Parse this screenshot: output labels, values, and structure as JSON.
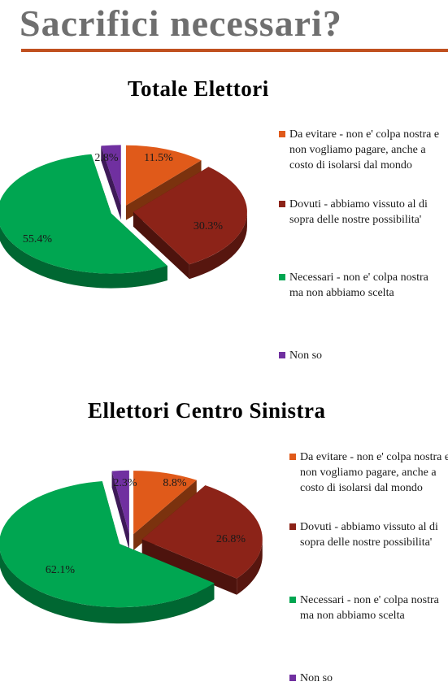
{
  "page": {
    "title": "Sacrifici necessari?"
  },
  "colors": {
    "evitare": "#e05a1a",
    "dovuti": "#8c2318",
    "necessari": "#00a651",
    "nonso": "#7030a0",
    "title_rule": "#c0501f"
  },
  "chart_data": [
    {
      "type": "pie",
      "title": "Totale Elettori",
      "legend_position": "right",
      "categories": [
        "Da evitare - non e' colpa nostra e non vogliamo pagare, anche a costo di isolarsi dal mondo",
        "Dovuti - abbiamo vissuto al di sopra delle nostre possibilita'",
        "Necessari - non e' colpa nostra ma non abbiamo scelta",
        "Non so"
      ],
      "values": [
        11.5,
        30.3,
        55.4,
        2.8
      ],
      "labels": [
        "11.5%",
        "30.3%",
        "55.4%",
        "2.8%"
      ]
    },
    {
      "type": "pie",
      "title": "Ellettori Centro Sinistra",
      "legend_position": "right",
      "categories": [
        "Da evitare - non e' colpa nostra e non vogliamo pagare, anche a costo di isolarsi dal mondo",
        "Dovuti - abbiamo vissuto al di sopra delle nostre possibilita'",
        "Necessari - non e' colpa nostra ma non abbiamo scelta",
        "Non so"
      ],
      "values": [
        8.8,
        26.8,
        62.1,
        2.3
      ],
      "labels": [
        "8.8%",
        "26.8%",
        "62.1%",
        "2.3%"
      ]
    }
  ]
}
